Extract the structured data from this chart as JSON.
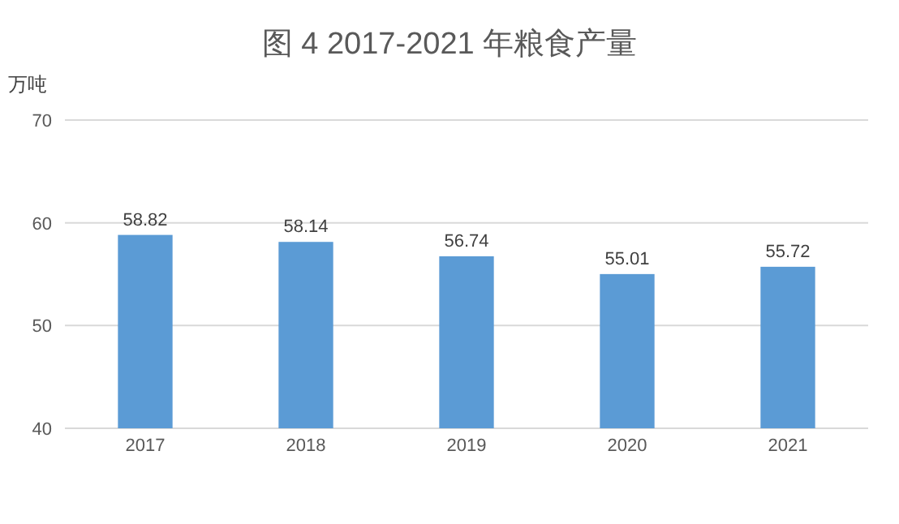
{
  "chart_data": {
    "type": "bar",
    "title": "图 4  2017-2021 年粮食产量",
    "ylabel": "万吨",
    "categories": [
      "2017",
      "2018",
      "2019",
      "2020",
      "2021"
    ],
    "values": [
      58.82,
      58.14,
      56.74,
      55.01,
      55.72
    ],
    "color": "#5b9bd5",
    "ylim": [
      40,
      70
    ],
    "yticks": [
      40,
      50,
      60,
      70
    ],
    "grid": "y",
    "data_labels": true
  }
}
